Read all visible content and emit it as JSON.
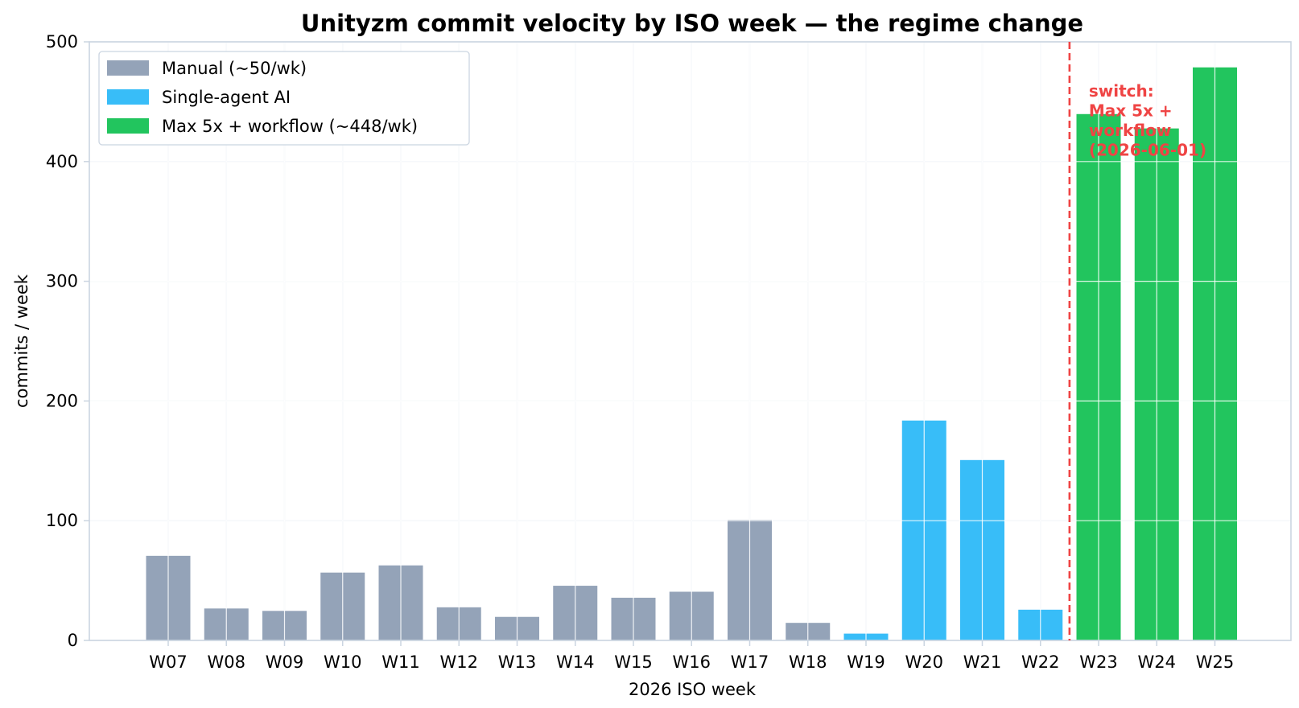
{
  "chart_data": {
    "type": "bar",
    "title": "Unityzm commit velocity by ISO week — the regime change",
    "xlabel": "2026 ISO week",
    "ylabel": "commits / week",
    "ylim": [
      0,
      500
    ],
    "yticks": [
      "0",
      "100",
      "200",
      "300",
      "400",
      "500"
    ],
    "grid": true,
    "legend_position": "top-left",
    "categories": [
      "W07",
      "W08",
      "W09",
      "W10",
      "W11",
      "W12",
      "W13",
      "W14",
      "W15",
      "W16",
      "W17",
      "W18",
      "W19",
      "W20",
      "W21",
      "W22",
      "W23",
      "W24",
      "W25"
    ],
    "values": [
      71,
      27,
      25,
      57,
      63,
      28,
      20,
      46,
      36,
      41,
      101,
      15,
      6,
      184,
      151,
      26,
      440,
      428,
      479
    ],
    "regimes": [
      "manual",
      "manual",
      "manual",
      "manual",
      "manual",
      "manual",
      "manual",
      "manual",
      "manual",
      "manual",
      "manual",
      "manual",
      "single",
      "single",
      "single",
      "single",
      "max",
      "max",
      "max"
    ],
    "series": [
      {
        "key": "manual",
        "name": "Manual (~50/wk)",
        "color": "#94a3b8"
      },
      {
        "key": "single",
        "name": "Single-agent AI",
        "color": "#38bdf8"
      },
      {
        "key": "max",
        "name": "Max 5x + workflow (~448/wk)",
        "color": "#22c55e"
      }
    ],
    "annotation": {
      "lines": [
        "switch:",
        "Max 5x +",
        "workflow",
        "(2026-06-01)"
      ],
      "color": "#ef4444",
      "after_category": "W22"
    }
  }
}
